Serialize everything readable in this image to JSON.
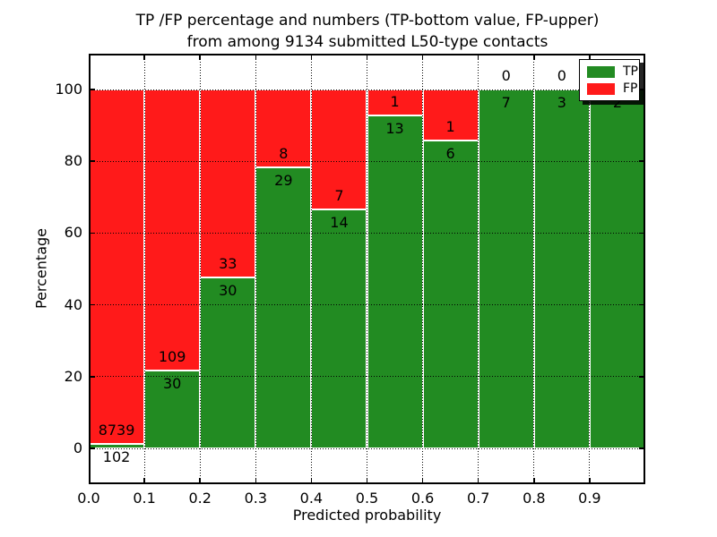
{
  "chart_data": {
    "type": "bar",
    "stacked": true,
    "units": "percent",
    "title_line1": "TP /FP percentage and numbers (TP-bottom value, FP-upper)",
    "title_line2": "from among 9134 submitted L50-type contacts",
    "xlabel": "Predicted probability",
    "ylabel": "Percentage",
    "xlim": [
      0.0,
      1.0
    ],
    "ylim": [
      -10,
      110
    ],
    "grid": "dotted",
    "x_tick_labels": [
      "0.0",
      "0.1",
      "0.2",
      "0.3",
      "0.4",
      "0.5",
      "0.6",
      "0.7",
      "0.8",
      "0.9"
    ],
    "y_tick_values": [
      0,
      20,
      40,
      60,
      80,
      100
    ],
    "y_tick_labels": [
      "0",
      "20",
      "40",
      "60",
      "80",
      "100"
    ],
    "colors": {
      "tp": "#228b22",
      "fp": "#ff1a1a",
      "bar_edge": "#ffffff",
      "grid": "#000000"
    },
    "legend": {
      "position": "upper right",
      "entries": [
        {
          "label": "TP",
          "color": "#228b22"
        },
        {
          "label": "FP",
          "color": "#ff1a1a"
        }
      ]
    },
    "bins": [
      {
        "x0": 0.0,
        "x1": 0.1,
        "tp_count": 102,
        "fp_count": 8739,
        "tp_pct": 1.15,
        "tp_label": "102",
        "fp_label": "8739"
      },
      {
        "x0": 0.1,
        "x1": 0.2,
        "tp_count": 30,
        "fp_count": 109,
        "tp_pct": 21.58,
        "tp_label": "30",
        "fp_label": "109"
      },
      {
        "x0": 0.2,
        "x1": 0.3,
        "tp_count": 30,
        "fp_count": 33,
        "tp_pct": 47.62,
        "tp_label": "30",
        "fp_label": "33"
      },
      {
        "x0": 0.3,
        "x1": 0.4,
        "tp_count": 29,
        "fp_count": 8,
        "tp_pct": 78.38,
        "tp_label": "29",
        "fp_label": "8"
      },
      {
        "x0": 0.4,
        "x1": 0.5,
        "tp_count": 14,
        "fp_count": 7,
        "tp_pct": 66.67,
        "tp_label": "14",
        "fp_label": "7"
      },
      {
        "x0": 0.5,
        "x1": 0.6,
        "tp_count": 13,
        "fp_count": 1,
        "tp_pct": 92.86,
        "tp_label": "13",
        "fp_label": "1"
      },
      {
        "x0": 0.6,
        "x1": 0.7,
        "tp_count": 6,
        "fp_count": 1,
        "tp_pct": 85.71,
        "tp_label": "6",
        "fp_label": "1"
      },
      {
        "x0": 0.7,
        "x1": 0.8,
        "tp_count": 7,
        "fp_count": 0,
        "tp_pct": 100,
        "tp_label": "7",
        "fp_label": "0"
      },
      {
        "x0": 0.8,
        "x1": 0.9,
        "tp_count": 3,
        "fp_count": 0,
        "tp_pct": 100,
        "tp_label": "3",
        "fp_label": "0"
      },
      {
        "x0": 0.9,
        "x1": 1.0,
        "tp_count": 2,
        "fp_count": null,
        "tp_pct": 100,
        "tp_label": "2",
        "fp_label": ""
      }
    ]
  }
}
